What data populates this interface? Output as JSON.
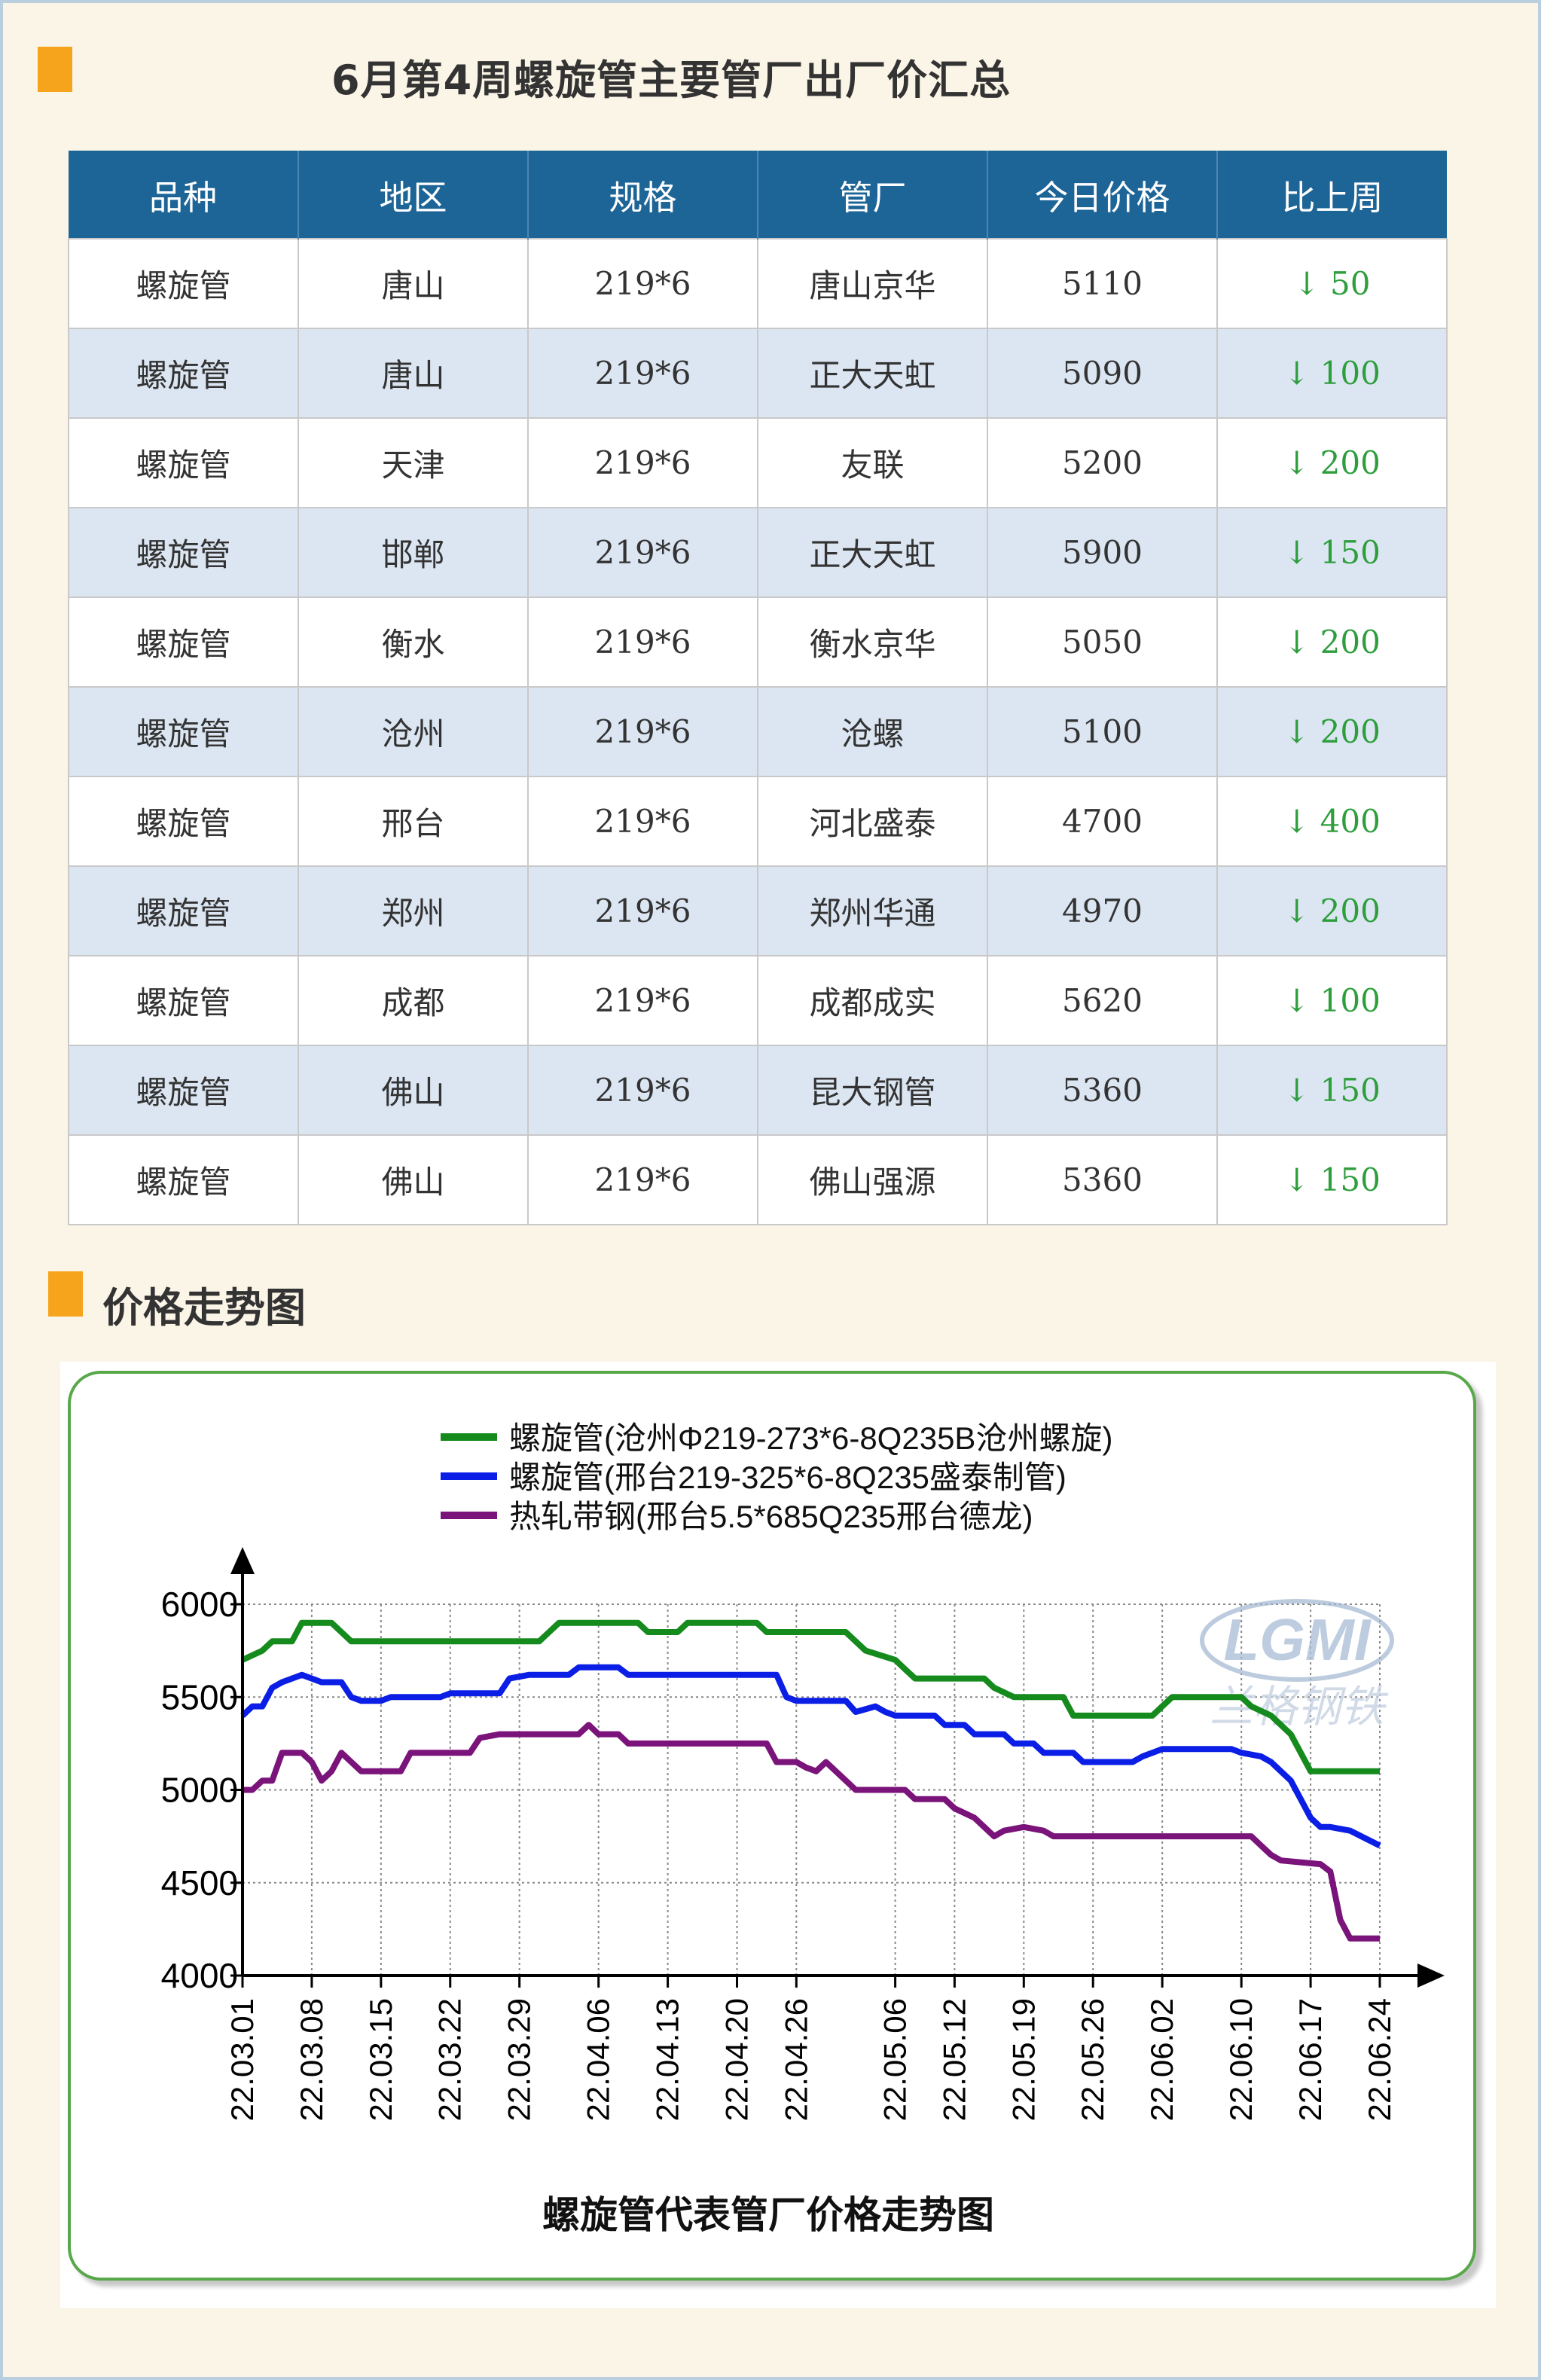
{
  "header": {
    "title": "6月第4周螺旋管主要管厂出厂价汇总"
  },
  "table": {
    "columns": [
      "品种",
      "地区",
      "规格",
      "管厂",
      "今日价格",
      "比上周"
    ],
    "rows": [
      [
        "螺旋管",
        "唐山",
        "219*6",
        "唐山京华",
        "5110",
        "↓ 50"
      ],
      [
        "螺旋管",
        "唐山",
        "219*6",
        "正大天虹",
        "5090",
        "↓ 100"
      ],
      [
        "螺旋管",
        "天津",
        "219*6",
        "友联",
        "5200",
        "↓ 200"
      ],
      [
        "螺旋管",
        "邯郸",
        "219*6",
        "正大天虹",
        "5900",
        "↓ 150"
      ],
      [
        "螺旋管",
        "衡水",
        "219*6",
        "衡水京华",
        "5050",
        "↓ 200"
      ],
      [
        "螺旋管",
        "沧州",
        "219*6",
        "沧螺",
        "5100",
        "↓ 200"
      ],
      [
        "螺旋管",
        "邢台",
        "219*6",
        "河北盛泰",
        "4700",
        "↓ 400"
      ],
      [
        "螺旋管",
        "郑州",
        "219*6",
        "郑州华通",
        "4970",
        "↓ 200"
      ],
      [
        "螺旋管",
        "成都",
        "219*6",
        "成都成实",
        "5620",
        "↓ 100"
      ],
      [
        "螺旋管",
        "佛山",
        "219*6",
        "昆大钢管",
        "5360",
        "↓ 150"
      ],
      [
        "螺旋管",
        "佛山",
        "219*6",
        "佛山强源",
        "5360",
        "↓ 150"
      ]
    ]
  },
  "trend_section": {
    "title": "价格走势图"
  },
  "watermark": {
    "text": "LGMI",
    "sub": "兰格钢铁"
  },
  "colors": {
    "header_blue": "#1d6497",
    "accent_orange": "#f7a41d",
    "down_green": "#2e9e3d"
  },
  "chart_data": {
    "type": "line",
    "title": "螺旋管代表管厂价格走势图",
    "ylim": [
      4000,
      6000
    ],
    "yticks": [
      4000,
      4500,
      5000,
      5500,
      6000
    ],
    "xlim": [
      0,
      115
    ],
    "xticks": [
      {
        "label": "22.03.01",
        "x": 0
      },
      {
        "label": "22.03.08",
        "x": 7
      },
      {
        "label": "22.03.15",
        "x": 14
      },
      {
        "label": "22.03.22",
        "x": 21
      },
      {
        "label": "22.03.29",
        "x": 28
      },
      {
        "label": "22.04.06",
        "x": 36
      },
      {
        "label": "22.04.13",
        "x": 43
      },
      {
        "label": "22.04.20",
        "x": 50
      },
      {
        "label": "22.04.26",
        "x": 56
      },
      {
        "label": "22.05.06",
        "x": 66
      },
      {
        "label": "22.05.12",
        "x": 72
      },
      {
        "label": "22.05.19",
        "x": 79
      },
      {
        "label": "22.05.26",
        "x": 86
      },
      {
        "label": "22.06.02",
        "x": 93
      },
      {
        "label": "22.06.10",
        "x": 101
      },
      {
        "label": "22.06.17",
        "x": 108
      },
      {
        "label": "22.06.24",
        "x": 115
      }
    ],
    "grid": true,
    "legend_position": "top",
    "series": [
      {
        "name": "螺旋管(沧州Φ219-273*6-8Q235B沧州螺旋)",
        "color": "#158a1d",
        "points": [
          [
            0,
            5700
          ],
          [
            2,
            5750
          ],
          [
            3,
            5800
          ],
          [
            5,
            5800
          ],
          [
            6,
            5900
          ],
          [
            9,
            5900
          ],
          [
            10,
            5850
          ],
          [
            11,
            5800
          ],
          [
            30,
            5800
          ],
          [
            31,
            5850
          ],
          [
            32,
            5900
          ],
          [
            40,
            5900
          ],
          [
            41,
            5850
          ],
          [
            44,
            5850
          ],
          [
            45,
            5900
          ],
          [
            52,
            5900
          ],
          [
            53,
            5850
          ],
          [
            61,
            5850
          ],
          [
            62,
            5800
          ],
          [
            63,
            5750
          ],
          [
            66,
            5700
          ],
          [
            67,
            5650
          ],
          [
            68,
            5600
          ],
          [
            75,
            5600
          ],
          [
            76,
            5550
          ],
          [
            78,
            5500
          ],
          [
            83,
            5500
          ],
          [
            84,
            5400
          ],
          [
            92,
            5400
          ],
          [
            93,
            5450
          ],
          [
            94,
            5500
          ],
          [
            101,
            5500
          ],
          [
            102,
            5450
          ],
          [
            104,
            5400
          ],
          [
            106,
            5300
          ],
          [
            107,
            5200
          ],
          [
            108,
            5100
          ],
          [
            115,
            5100
          ]
        ]
      },
      {
        "name": "螺旋管(邢台219-325*6-8Q235盛泰制管)",
        "color": "#0a1ee6",
        "points": [
          [
            0,
            5400
          ],
          [
            1,
            5450
          ],
          [
            2,
            5450
          ],
          [
            3,
            5550
          ],
          [
            4,
            5580
          ],
          [
            5,
            5600
          ],
          [
            6,
            5620
          ],
          [
            7,
            5600
          ],
          [
            8,
            5580
          ],
          [
            10,
            5580
          ],
          [
            11,
            5500
          ],
          [
            12,
            5480
          ],
          [
            14,
            5480
          ],
          [
            15,
            5500
          ],
          [
            20,
            5500
          ],
          [
            21,
            5520
          ],
          [
            26,
            5520
          ],
          [
            27,
            5600
          ],
          [
            29,
            5620
          ],
          [
            33,
            5620
          ],
          [
            34,
            5660
          ],
          [
            38,
            5660
          ],
          [
            39,
            5620
          ],
          [
            54,
            5620
          ],
          [
            55,
            5500
          ],
          [
            56,
            5480
          ],
          [
            61,
            5480
          ],
          [
            62,
            5420
          ],
          [
            64,
            5450
          ],
          [
            65,
            5420
          ],
          [
            66,
            5400
          ],
          [
            70,
            5400
          ],
          [
            71,
            5350
          ],
          [
            73,
            5350
          ],
          [
            74,
            5300
          ],
          [
            77,
            5300
          ],
          [
            78,
            5250
          ],
          [
            80,
            5250
          ],
          [
            81,
            5200
          ],
          [
            84,
            5200
          ],
          [
            85,
            5150
          ],
          [
            90,
            5150
          ],
          [
            91,
            5180
          ],
          [
            92,
            5200
          ],
          [
            93,
            5220
          ],
          [
            100,
            5220
          ],
          [
            101,
            5200
          ],
          [
            103,
            5180
          ],
          [
            104,
            5150
          ],
          [
            106,
            5050
          ],
          [
            107,
            4950
          ],
          [
            108,
            4850
          ],
          [
            109,
            4800
          ],
          [
            110,
            4800
          ],
          [
            112,
            4780
          ],
          [
            115,
            4700
          ]
        ]
      },
      {
        "name": "热轧带钢(邢台5.5*685Q235邢台德龙)",
        "color": "#7a137a",
        "points": [
          [
            0,
            5000
          ],
          [
            1,
            5000
          ],
          [
            2,
            5050
          ],
          [
            3,
            5050
          ],
          [
            4,
            5200
          ],
          [
            6,
            5200
          ],
          [
            7,
            5150
          ],
          [
            8,
            5050
          ],
          [
            9,
            5100
          ],
          [
            10,
            5200
          ],
          [
            11,
            5150
          ],
          [
            12,
            5100
          ],
          [
            16,
            5100
          ],
          [
            17,
            5200
          ],
          [
            23,
            5200
          ],
          [
            24,
            5280
          ],
          [
            26,
            5300
          ],
          [
            34,
            5300
          ],
          [
            35,
            5350
          ],
          [
            36,
            5300
          ],
          [
            38,
            5300
          ],
          [
            39,
            5250
          ],
          [
            53,
            5250
          ],
          [
            54,
            5150
          ],
          [
            56,
            5150
          ],
          [
            57,
            5120
          ],
          [
            58,
            5100
          ],
          [
            59,
            5150
          ],
          [
            60,
            5100
          ],
          [
            61,
            5050
          ],
          [
            62,
            5000
          ],
          [
            67,
            5000
          ],
          [
            68,
            4950
          ],
          [
            71,
            4950
          ],
          [
            72,
            4900
          ],
          [
            74,
            4850
          ],
          [
            75,
            4800
          ],
          [
            76,
            4750
          ],
          [
            77,
            4780
          ],
          [
            79,
            4800
          ],
          [
            81,
            4780
          ],
          [
            82,
            4750
          ],
          [
            102,
            4750
          ],
          [
            103,
            4700
          ],
          [
            104,
            4650
          ],
          [
            105,
            4620
          ],
          [
            109,
            4600
          ],
          [
            110,
            4560
          ],
          [
            111,
            4300
          ],
          [
            112,
            4200
          ],
          [
            115,
            4200
          ]
        ]
      }
    ]
  }
}
